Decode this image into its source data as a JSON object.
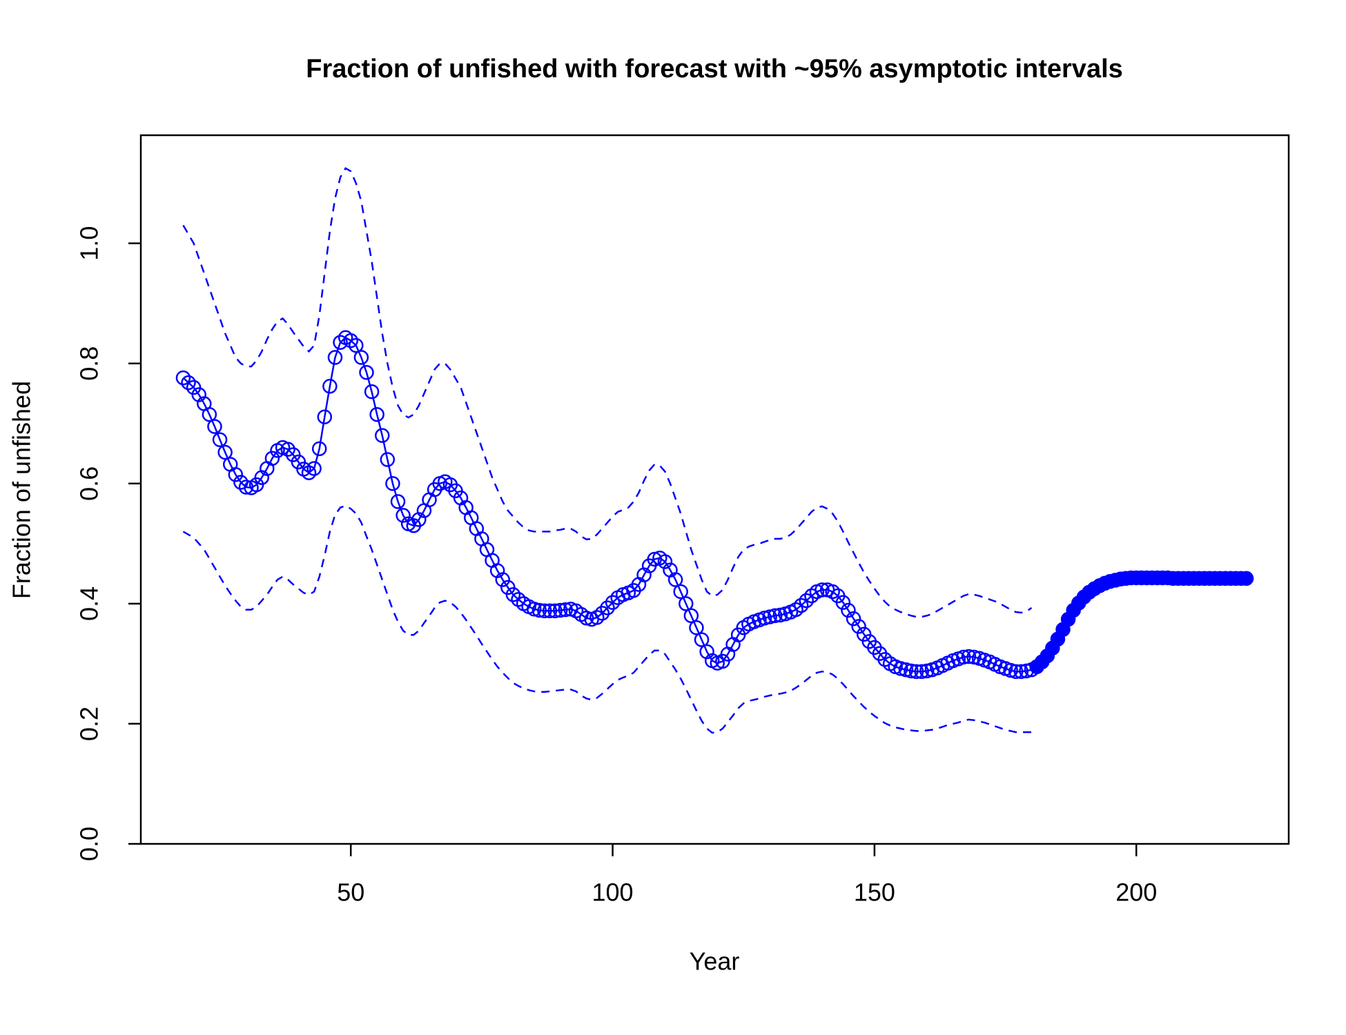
{
  "chart_data": {
    "type": "line",
    "title": "Fraction of unfished with forecast with ~95% asymptotic intervals",
    "x_label": "Year",
    "y_label": "Fraction of unfished",
    "xlim": [
      9.9,
      229.1
    ],
    "ylim": [
      0,
      1.18
    ],
    "xticks": [
      50,
      100,
      150,
      200
    ],
    "yticks": [
      {
        "value": 0,
        "label": "0.0"
      },
      {
        "value": 0.2,
        "label": "0.2"
      },
      {
        "value": 0.4,
        "label": "0.4"
      },
      {
        "value": 0.6,
        "label": "0.6"
      },
      {
        "value": 0.8,
        "label": "0.8"
      },
      {
        "value": 1,
        "label": "1.0"
      }
    ],
    "grid": false,
    "x": [
      18,
      19,
      20,
      21,
      22,
      23,
      24,
      25,
      26,
      27,
      28,
      29,
      30,
      31,
      32,
      33,
      34,
      35,
      36,
      37,
      38,
      39,
      40,
      41,
      42,
      43,
      44,
      45,
      46,
      47,
      48,
      49,
      50,
      51,
      52,
      53,
      54,
      55,
      56,
      57,
      58,
      59,
      60,
      61,
      62,
      63,
      64,
      65,
      66,
      67,
      68,
      69,
      70,
      71,
      72,
      73,
      74,
      75,
      76,
      77,
      78,
      79,
      80,
      81,
      82,
      83,
      84,
      85,
      86,
      87,
      88,
      89,
      90,
      91,
      92,
      93,
      94,
      95,
      96,
      97,
      98,
      99,
      100,
      101,
      102,
      103,
      104,
      105,
      106,
      107,
      108,
      109,
      110,
      111,
      112,
      113,
      114,
      115,
      116,
      117,
      118,
      119,
      120,
      121,
      122,
      123,
      124,
      125,
      126,
      127,
      128,
      129,
      130,
      131,
      132,
      133,
      134,
      135,
      136,
      137,
      138,
      139,
      140,
      141,
      142,
      143,
      144,
      145,
      146,
      147,
      148,
      149,
      150,
      151,
      152,
      153,
      154,
      155,
      156,
      157,
      158,
      159,
      160,
      161,
      162,
      163,
      164,
      165,
      166,
      167,
      168,
      169,
      170,
      171,
      172,
      173,
      174,
      175,
      176,
      177,
      178,
      179,
      180,
      181,
      182,
      183,
      184,
      185,
      186,
      187,
      188,
      189,
      190,
      191,
      192,
      193,
      194,
      195,
      196,
      197,
      198,
      199,
      200,
      201,
      202,
      203,
      204,
      205,
      206,
      207,
      208,
      209,
      210,
      211,
      212,
      213,
      214,
      215,
      216,
      217,
      218,
      219,
      220,
      221
    ],
    "series": [
      {
        "color": "#0000ff",
        "style": "open",
        "values": [
          0.776,
          0.768,
          0.76,
          0.748,
          0.733,
          0.715,
          0.695,
          0.673,
          0.652,
          0.632,
          0.615,
          0.602,
          0.594,
          0.593,
          0.598,
          0.61,
          0.625,
          0.642,
          0.655,
          0.66,
          0.657,
          0.648,
          0.636,
          0.624,
          0.618,
          0.625,
          0.658,
          0.711,
          0.762,
          0.81,
          0.835,
          0.843,
          0.838,
          0.83,
          0.81,
          0.785,
          0.753,
          0.715,
          0.68,
          0.64,
          0.6,
          0.57,
          0.547,
          0.533,
          0.53,
          0.54,
          0.555,
          0.573,
          0.59,
          0.6,
          0.603,
          0.598,
          0.588,
          0.576,
          0.56,
          0.543,
          0.525,
          0.508,
          0.49,
          0.472,
          0.455,
          0.44,
          0.427,
          0.415,
          0.407,
          0.4,
          0.395,
          0.391,
          0.389,
          0.388,
          0.388,
          0.388,
          0.389,
          0.39,
          0.391,
          0.388,
          0.382,
          0.376,
          0.374,
          0.377,
          0.384,
          0.393,
          0.402,
          0.41,
          0.415,
          0.418,
          0.422,
          0.432,
          0.448,
          0.463,
          0.474,
          0.476,
          0.47,
          0.456,
          0.44,
          0.42,
          0.4,
          0.38,
          0.36,
          0.34,
          0.32,
          0.305,
          0.301,
          0.304,
          0.316,
          0.332,
          0.348,
          0.36,
          0.366,
          0.37,
          0.373,
          0.376,
          0.378,
          0.38,
          0.381,
          0.383,
          0.386,
          0.39,
          0.397,
          0.405,
          0.413,
          0.42,
          0.423,
          0.423,
          0.42,
          0.413,
          0.402,
          0.389,
          0.375,
          0.362,
          0.349,
          0.337,
          0.327,
          0.317,
          0.307,
          0.3,
          0.295,
          0.292,
          0.29,
          0.288,
          0.287,
          0.287,
          0.288,
          0.29,
          0.293,
          0.297,
          0.301,
          0.305,
          0.308,
          0.311,
          0.312,
          0.311,
          0.309,
          0.306,
          0.303,
          0.299,
          0.295,
          0.292,
          0.289,
          0.287,
          0.287,
          0.288,
          0.29,
          null,
          null,
          null,
          null,
          null,
          null,
          null,
          null,
          null,
          null,
          null,
          null,
          null,
          null,
          null,
          null,
          null,
          null,
          null,
          null,
          null,
          null,
          null,
          null,
          null,
          null,
          null,
          null,
          null,
          null,
          null,
          null,
          null,
          null,
          null,
          null,
          null,
          null,
          null,
          null,
          null
        ]
      },
      {
        "color": "#0000ff",
        "style": "filled",
        "values": [
          null,
          null,
          null,
          null,
          null,
          null,
          null,
          null,
          null,
          null,
          null,
          null,
          null,
          null,
          null,
          null,
          null,
          null,
          null,
          null,
          null,
          null,
          null,
          null,
          null,
          null,
          null,
          null,
          null,
          null,
          null,
          null,
          null,
          null,
          null,
          null,
          null,
          null,
          null,
          null,
          null,
          null,
          null,
          null,
          null,
          null,
          null,
          null,
          null,
          null,
          null,
          null,
          null,
          null,
          null,
          null,
          null,
          null,
          null,
          null,
          null,
          null,
          null,
          null,
          null,
          null,
          null,
          null,
          null,
          null,
          null,
          null,
          null,
          null,
          null,
          null,
          null,
          null,
          null,
          null,
          null,
          null,
          null,
          null,
          null,
          null,
          null,
          null,
          null,
          null,
          null,
          null,
          null,
          null,
          null,
          null,
          null,
          null,
          null,
          null,
          null,
          null,
          null,
          null,
          null,
          null,
          null,
          null,
          null,
          null,
          null,
          null,
          null,
          null,
          null,
          null,
          null,
          null,
          null,
          null,
          null,
          null,
          null,
          null,
          null,
          null,
          null,
          null,
          null,
          null,
          null,
          null,
          null,
          null,
          null,
          null,
          null,
          null,
          null,
          null,
          null,
          null,
          null,
          null,
          null,
          null,
          null,
          null,
          null,
          null,
          null,
          null,
          null,
          null,
          null,
          null,
          null,
          null,
          null,
          null,
          null,
          null,
          null,
          0.295,
          0.303,
          0.313,
          0.326,
          0.341,
          0.357,
          0.374,
          0.389,
          0.401,
          0.411,
          0.419,
          0.425,
          0.43,
          0.434,
          0.437,
          0.439,
          0.441,
          0.442,
          0.443,
          0.443,
          0.443,
          0.443,
          0.443,
          0.443,
          0.443,
          0.443,
          0.442,
          0.442,
          0.442,
          0.442,
          0.442,
          0.442,
          0.442,
          0.442,
          0.442,
          0.442,
          0.442,
          0.442,
          0.442,
          0.442,
          0.442
        ]
      },
      {
        "color": "#0000ff",
        "style": "dashed",
        "values": [
          1.03,
          1.015,
          1.0,
          0.975,
          0.95,
          0.925,
          0.9,
          0.875,
          0.85,
          0.83,
          0.81,
          0.8,
          0.795,
          0.795,
          0.805,
          0.82,
          0.84,
          0.857,
          0.87,
          0.875,
          0.865,
          0.852,
          0.84,
          0.828,
          0.82,
          0.83,
          0.88,
          0.95,
          1.02,
          1.075,
          1.11,
          1.125,
          1.12,
          1.1,
          1.07,
          1.02,
          0.97,
          0.91,
          0.85,
          0.8,
          0.76,
          0.73,
          0.715,
          0.71,
          0.715,
          0.73,
          0.75,
          0.77,
          0.79,
          0.8,
          0.8,
          0.79,
          0.775,
          0.76,
          0.735,
          0.71,
          0.685,
          0.66,
          0.635,
          0.61,
          0.59,
          0.57,
          0.555,
          0.545,
          0.535,
          0.527,
          0.522,
          0.52,
          0.52,
          0.52,
          0.52,
          0.522,
          0.523,
          0.525,
          0.525,
          0.52,
          0.512,
          0.507,
          0.508,
          0.515,
          0.525,
          0.535,
          0.545,
          0.553,
          0.556,
          0.56,
          0.57,
          0.585,
          0.605,
          0.622,
          0.632,
          0.63,
          0.62,
          0.6,
          0.575,
          0.55,
          0.52,
          0.49,
          0.465,
          0.44,
          0.42,
          0.413,
          0.415,
          0.423,
          0.44,
          0.46,
          0.478,
          0.49,
          0.495,
          0.498,
          0.5,
          0.503,
          0.506,
          0.508,
          0.508,
          0.51,
          0.515,
          0.523,
          0.533,
          0.543,
          0.553,
          0.56,
          0.562,
          0.558,
          0.55,
          0.537,
          0.52,
          0.502,
          0.485,
          0.468,
          0.452,
          0.438,
          0.425,
          0.413,
          0.403,
          0.395,
          0.39,
          0.386,
          0.383,
          0.38,
          0.378,
          0.378,
          0.38,
          0.383,
          0.388,
          0.393,
          0.398,
          0.403,
          0.408,
          0.413,
          0.416,
          0.415,
          0.413,
          0.41,
          0.407,
          0.404,
          0.4,
          0.395,
          0.39,
          0.386,
          0.385,
          0.387,
          0.393,
          null,
          null,
          null,
          null,
          null,
          null,
          null,
          null,
          null,
          null,
          null,
          null,
          null,
          null,
          null,
          null,
          null,
          null,
          null,
          null,
          null,
          null,
          null,
          null,
          null,
          null,
          null,
          null,
          null,
          null,
          null,
          null,
          null,
          null,
          null,
          null,
          null,
          null,
          null,
          null,
          null
        ]
      },
      {
        "color": "#0000ff",
        "style": "dashed",
        "values": [
          0.52,
          0.515,
          0.51,
          0.5,
          0.49,
          0.475,
          0.46,
          0.445,
          0.43,
          0.417,
          0.405,
          0.395,
          0.39,
          0.39,
          0.395,
          0.405,
          0.415,
          0.428,
          0.44,
          0.445,
          0.44,
          0.432,
          0.425,
          0.418,
          0.415,
          0.42,
          0.445,
          0.48,
          0.52,
          0.548,
          0.56,
          0.563,
          0.558,
          0.55,
          0.535,
          0.512,
          0.49,
          0.465,
          0.44,
          0.415,
          0.39,
          0.37,
          0.355,
          0.348,
          0.348,
          0.355,
          0.368,
          0.38,
          0.393,
          0.402,
          0.405,
          0.402,
          0.395,
          0.385,
          0.373,
          0.36,
          0.347,
          0.333,
          0.32,
          0.307,
          0.295,
          0.285,
          0.276,
          0.268,
          0.263,
          0.259,
          0.256,
          0.254,
          0.253,
          0.253,
          0.254,
          0.255,
          0.256,
          0.257,
          0.257,
          0.254,
          0.247,
          0.242,
          0.24,
          0.243,
          0.25,
          0.258,
          0.266,
          0.273,
          0.277,
          0.28,
          0.285,
          0.295,
          0.305,
          0.315,
          0.322,
          0.322,
          0.316,
          0.303,
          0.29,
          0.275,
          0.258,
          0.24,
          0.222,
          0.205,
          0.192,
          0.185,
          0.186,
          0.192,
          0.203,
          0.214,
          0.226,
          0.234,
          0.238,
          0.24,
          0.242,
          0.245,
          0.247,
          0.249,
          0.25,
          0.252,
          0.255,
          0.26,
          0.266,
          0.273,
          0.28,
          0.285,
          0.287,
          0.286,
          0.282,
          0.275,
          0.266,
          0.256,
          0.246,
          0.237,
          0.228,
          0.22,
          0.213,
          0.207,
          0.201,
          0.197,
          0.194,
          0.192,
          0.19,
          0.189,
          0.188,
          0.188,
          0.189,
          0.19,
          0.192,
          0.195,
          0.198,
          0.2,
          0.202,
          0.205,
          0.207,
          0.206,
          0.204,
          0.202,
          0.199,
          0.196,
          0.193,
          0.19,
          0.188,
          0.186,
          0.186,
          0.186,
          0.186,
          null,
          null,
          null,
          null,
          null,
          null,
          null,
          null,
          null,
          null,
          null,
          null,
          null,
          null,
          null,
          null,
          null,
          null,
          null,
          null,
          null,
          null,
          null,
          null,
          null,
          null,
          null,
          null,
          null,
          null,
          null,
          null,
          null,
          null,
          null,
          null,
          null,
          null,
          null,
          null,
          null
        ]
      }
    ]
  }
}
